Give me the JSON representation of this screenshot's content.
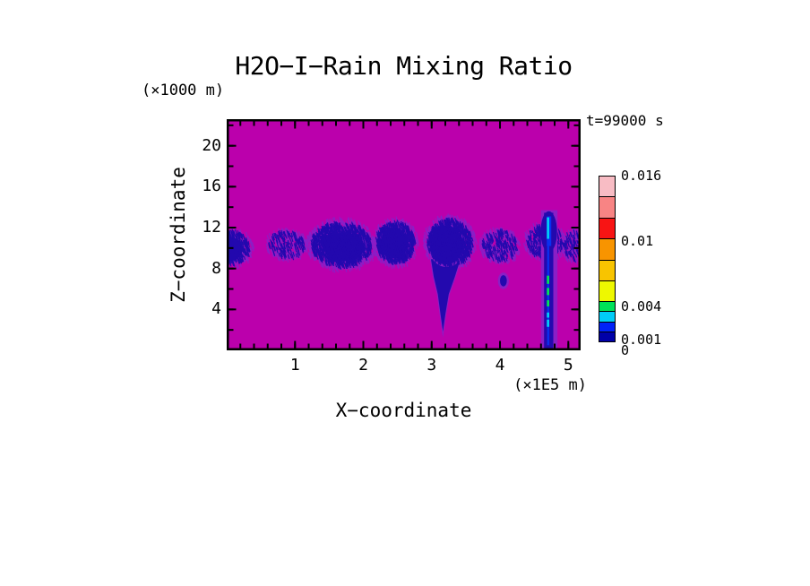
{
  "chart_data": {
    "type": "heatmap",
    "title": "H2O−I−Rain Mixing Ratio",
    "xlabel": "X−coordinate",
    "ylabel": "Z−coordinate",
    "x_unit": "(×1E5 m)",
    "y_unit": "(×1000 m)",
    "time_annotation": "t=99000 s",
    "x_range": [
      0,
      5.18
    ],
    "z_range": [
      0,
      22.6
    ],
    "x_major_ticks": [
      1,
      2,
      3,
      4,
      5
    ],
    "x_minor_step": 0.2,
    "z_major_ticks": [
      4,
      8,
      12,
      16,
      20
    ],
    "z_minor_step": 2,
    "grid": false,
    "legend_position": "right",
    "colorbar": {
      "levels": [
        0,
        0.001,
        0.002,
        0.003,
        0.004,
        0.006,
        0.008,
        0.01,
        0.012,
        0.014,
        0.016
      ],
      "colors": [
        "#0000A8",
        "#0022F8",
        "#00CCF8",
        "#00E258",
        "#EEF800",
        "#F8C400",
        "#F89400",
        "#F81414",
        "#F88484",
        "#F8BCC4"
      ],
      "labels": [
        {
          "value": 0.016,
          "text": "0.016"
        },
        {
          "value": 0.01,
          "text": "0.01"
        },
        {
          "value": 0.004,
          "text": "0.004"
        },
        {
          "value": 0.001,
          "text": "0.001"
        },
        {
          "value": 0,
          "text": "0"
        }
      ]
    },
    "field_colors": {
      "background": "#BB00AC",
      "fringe": "#8A1FC6",
      "band": "#2309AE",
      "blue": "#0A30F0",
      "cyan": "#00CCF8",
      "green": "#00E258"
    },
    "features": {
      "description": "rain mixing-ratio band near z=8-13 km with precipitation shafts",
      "patches": [
        {
          "cx": 0.05,
          "cz": 10.0,
          "rx": 0.34,
          "rz": 1.9,
          "fringe": 260,
          "navy": 420
        },
        {
          "cx": 0.88,
          "cz": 10.3,
          "rx": 0.31,
          "rz": 1.5,
          "fringe": 230,
          "navy": 150
        },
        {
          "cx": 1.68,
          "cz": 10.3,
          "rx": 0.52,
          "rz": 2.5,
          "fringe": 750,
          "navy": 1150
        },
        {
          "cx": 2.47,
          "cz": 10.5,
          "rx": 0.34,
          "rz": 2.3,
          "fringe": 480,
          "navy": 720
        },
        {
          "cx": 3.27,
          "cz": 10.5,
          "rx": 0.39,
          "rz": 2.6,
          "fringe": 560,
          "navy": 860
        },
        {
          "cx": 4.0,
          "cz": 10.2,
          "rx": 0.3,
          "rz": 1.7,
          "fringe": 280,
          "navy": 190
        },
        {
          "cx": 4.66,
          "cz": 10.6,
          "rx": 0.31,
          "rz": 1.9,
          "fringe": 300,
          "navy": 260
        },
        {
          "cx": 5.12,
          "cz": 10.2,
          "rx": 0.23,
          "rz": 1.6,
          "fringe": 190,
          "navy": 130
        }
      ],
      "cores": [
        {
          "cx": 0.03,
          "cz": 9.9,
          "rx": 0.2,
          "rz": 1.2
        },
        {
          "cx": 1.72,
          "cz": 10.1,
          "rx": 0.3,
          "rz": 1.4
        },
        {
          "cx": 2.45,
          "cz": 10.5,
          "rx": 0.2,
          "rz": 1.5
        },
        {
          "cx": 3.22,
          "cz": 10.3,
          "rx": 0.24,
          "rz": 1.9
        },
        {
          "cx": 4.05,
          "cz": 6.8,
          "rx": 0.05,
          "rz": 0.55
        }
      ],
      "funnel": {
        "points": [
          [
            2.99,
            8.9
          ],
          [
            3.42,
            8.9
          ],
          [
            3.34,
            7.2
          ],
          [
            3.25,
            5.5
          ],
          [
            3.2,
            3.5
          ],
          [
            3.165,
            1.85
          ],
          [
            3.13,
            3.5
          ],
          [
            3.09,
            5.5
          ],
          [
            3.03,
            7.2
          ]
        ]
      },
      "streak": {
        "fringe_rect": {
          "x0": 4.6,
          "x1": 4.84,
          "z0": 0,
          "z1": 13.7
        },
        "column": {
          "x0": 4.645,
          "x1": 4.78,
          "z0": 0,
          "z1": 13.45
        },
        "bulge": {
          "cx": 4.715,
          "cz": 11.6,
          "rx": 0.12,
          "rz": 2.0
        },
        "blue_top": {
          "x0": 4.685,
          "x1": 4.75,
          "z0": 10.2,
          "z1": 13.1
        },
        "blue_line": {
          "x0": 4.69,
          "x1": 4.72,
          "z0": 0.5,
          "z1": 10.2
        },
        "inner_x": 4.703,
        "inner_w": 0.036,
        "cyan_segments": [
          [
            10.9,
            13.0
          ],
          [
            2.3,
            3.0
          ],
          [
            3.2,
            3.7
          ]
        ],
        "green_segments": [
          [
            4.3,
            4.9
          ],
          [
            5.4,
            6.1
          ],
          [
            6.5,
            7.3
          ]
        ]
      }
    }
  }
}
